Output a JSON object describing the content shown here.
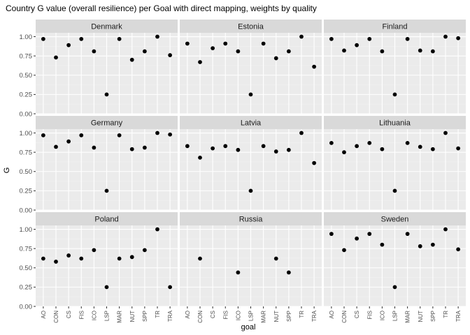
{
  "chart_data": {
    "type": "scatter",
    "title": "Country G value (overall resilience) per Goal with direct mapping, weights by quality",
    "xlabel": "goal",
    "ylabel": "G",
    "ylim": [
      0,
      1.05
    ],
    "yticks": [
      "0.00",
      "0.25",
      "0.50",
      "0.75",
      "1.00"
    ],
    "ytick_values": [
      0,
      0.25,
      0.5,
      0.75,
      1.0
    ],
    "categories": [
      "AO",
      "CON",
      "CS",
      "FIS",
      "ICO",
      "LSP",
      "MAR",
      "NUT",
      "SPP",
      "TR",
      "TRA"
    ],
    "grid": true,
    "facets": [
      {
        "name": "Denmark",
        "values": [
          0.97,
          0.73,
          0.89,
          0.97,
          0.81,
          0.25,
          0.97,
          0.7,
          0.81,
          1.0,
          0.76
        ]
      },
      {
        "name": "Estonia",
        "values": [
          0.91,
          0.67,
          0.85,
          0.91,
          0.81,
          0.25,
          0.91,
          0.72,
          0.81,
          1.0,
          0.61
        ]
      },
      {
        "name": "Finland",
        "values": [
          0.97,
          0.82,
          0.89,
          0.97,
          0.81,
          0.25,
          0.97,
          0.82,
          0.81,
          1.0,
          0.98
        ]
      },
      {
        "name": "Germany",
        "values": [
          0.97,
          0.82,
          0.89,
          0.97,
          0.81,
          0.25,
          0.97,
          0.79,
          0.81,
          1.0,
          0.98
        ]
      },
      {
        "name": "Latvia",
        "values": [
          0.83,
          0.68,
          0.8,
          0.83,
          0.78,
          0.25,
          0.83,
          0.76,
          0.78,
          1.0,
          0.61
        ]
      },
      {
        "name": "Lithuania",
        "values": [
          0.87,
          0.75,
          0.83,
          0.87,
          0.79,
          0.25,
          0.87,
          0.82,
          0.79,
          1.0,
          0.8
        ]
      },
      {
        "name": "Poland",
        "values": [
          0.62,
          0.58,
          0.66,
          0.62,
          0.73,
          0.25,
          0.62,
          0.64,
          0.73,
          1.0,
          0.25
        ]
      },
      {
        "name": "Russia",
        "values": [
          null,
          0.62,
          null,
          null,
          0.44,
          null,
          null,
          0.62,
          0.44,
          null,
          null
        ]
      },
      {
        "name": "Sweden",
        "values": [
          0.94,
          0.73,
          0.88,
          0.94,
          0.8,
          0.25,
          0.94,
          0.78,
          0.8,
          1.0,
          0.74
        ]
      }
    ],
    "colors": {
      "panel_bg": "#ebebeb",
      "grid_major": "#ffffff",
      "grid_minor": "#f2f2f2",
      "strip_bg": "#d9d9d9",
      "point": "#000000",
      "tick": "#333333"
    }
  }
}
